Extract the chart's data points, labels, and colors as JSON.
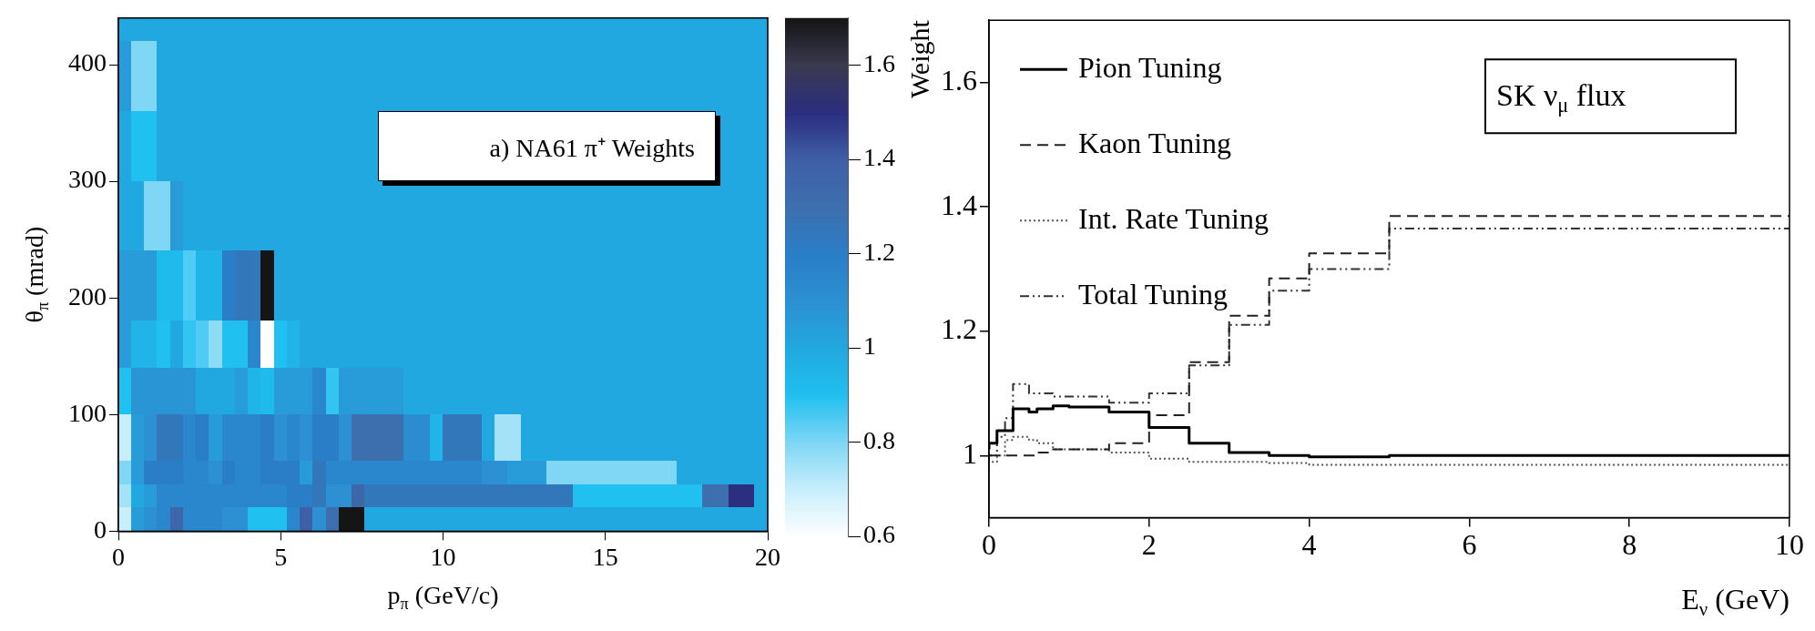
{
  "chart_data": [
    {
      "type": "heatmap",
      "xlabel": "p$_{π}$ (GeV/c)",
      "ylabel": "θ$_{π}$ (mrad)",
      "annotations": [
        "a) NA61 π⁺ Weights"
      ],
      "x": [
        0.2,
        0.6,
        1,
        1.4,
        1.8,
        2.2,
        2.6,
        3,
        3.4,
        3.8,
        4.2,
        4.6,
        5,
        5.4,
        5.8,
        6.2,
        6.6,
        7,
        7.4,
        7.8,
        8.2,
        8.6,
        9,
        9.4,
        9.8,
        10.2,
        10.6,
        11,
        11.4,
        11.8,
        12.2,
        12.6,
        13,
        13.4,
        13.8,
        14.2,
        14.6,
        15,
        15.4,
        15.8,
        16.2,
        16.6,
        17,
        17.4,
        17.8,
        18.2,
        18.6,
        19,
        19.4,
        19.8
      ],
      "y": [
        430,
        410,
        390,
        370,
        350,
        330,
        310,
        290,
        270,
        250,
        230,
        210,
        190,
        170,
        150,
        130,
        110,
        90,
        70,
        50,
        30,
        10
      ],
      "cells": [
        [
          1,
          1,
          1,
          1,
          1,
          1,
          1,
          1,
          1,
          1,
          1,
          1,
          1,
          1,
          1,
          1,
          1,
          1,
          1,
          1,
          1,
          1,
          1,
          1,
          1,
          1,
          1,
          1,
          1,
          1,
          1,
          1,
          1,
          1,
          1,
          1,
          1,
          1,
          1,
          1,
          1,
          1,
          1,
          1,
          1,
          1,
          1,
          1,
          1,
          1
        ],
        [
          1.05,
          0.8,
          0.8,
          1,
          1,
          1,
          1,
          1,
          1,
          1,
          1,
          1,
          1,
          1,
          1,
          1,
          1,
          1,
          1,
          1,
          1,
          1,
          1,
          1,
          1,
          1,
          1,
          1,
          1,
          1,
          1,
          1,
          1,
          1,
          1,
          1,
          1,
          1,
          1,
          1,
          1,
          1,
          1,
          1,
          1,
          1,
          1,
          1,
          1,
          1
        ],
        [
          1.05,
          0.8,
          0.8,
          1,
          1,
          1,
          1,
          1,
          1,
          1,
          1,
          1,
          1,
          1,
          1,
          1,
          1,
          1,
          1,
          1,
          1,
          1,
          1,
          1,
          1,
          1,
          1,
          1,
          1,
          1,
          1,
          1,
          1,
          1,
          1,
          1,
          1,
          1,
          1,
          1,
          1,
          1,
          1,
          1,
          1,
          1,
          1,
          1,
          1,
          1
        ],
        [
          1.05,
          0.8,
          0.8,
          1,
          1,
          1,
          1,
          1,
          1,
          1,
          1,
          1,
          1,
          1,
          1,
          1,
          1,
          1,
          1,
          1,
          1,
          1,
          1,
          1,
          1,
          1,
          1,
          1,
          1,
          1,
          1,
          1,
          1,
          1,
          1,
          1,
          1,
          1,
          1,
          1,
          1,
          1,
          1,
          1,
          1,
          1,
          1,
          1,
          1,
          1
        ],
        [
          1,
          0.9,
          0.9,
          1,
          1,
          1,
          1,
          1,
          1,
          1,
          1,
          1,
          1,
          1,
          1,
          1,
          1,
          1,
          1,
          1,
          null,
          null,
          null,
          null,
          null,
          null,
          null,
          null,
          null,
          null,
          null,
          null,
          null,
          null,
          null,
          null,
          null,
          null,
          null,
          null,
          null,
          null,
          null,
          null,
          null,
          null,
          1,
          1,
          1,
          1
        ],
        [
          1,
          0.9,
          0.9,
          1,
          1,
          1,
          1,
          1,
          1,
          1,
          1,
          1,
          1,
          1,
          1,
          1,
          1,
          1,
          1,
          1,
          null,
          null,
          null,
          null,
          null,
          null,
          null,
          null,
          null,
          null,
          null,
          null,
          null,
          null,
          null,
          null,
          null,
          null,
          null,
          null,
          null,
          null,
          null,
          null,
          null,
          null,
          1,
          1,
          1,
          1
        ],
        [
          1,
          0.9,
          0.9,
          1,
          1,
          1,
          1,
          1,
          1,
          1,
          1,
          1,
          1,
          1,
          1,
          1,
          1,
          1,
          1,
          1,
          null,
          null,
          null,
          null,
          null,
          null,
          null,
          null,
          null,
          null,
          null,
          null,
          null,
          null,
          null,
          null,
          null,
          null,
          null,
          null,
          null,
          null,
          null,
          null,
          null,
          null,
          1,
          1,
          1,
          1
        ],
        [
          1,
          1,
          0.8,
          0.8,
          1.05,
          1,
          1,
          1,
          1,
          1,
          1,
          1,
          1,
          1,
          1,
          1,
          1,
          1,
          1,
          1,
          1,
          1,
          1,
          1,
          1,
          1,
          1,
          1,
          1,
          1,
          1,
          1,
          1,
          1,
          1,
          1,
          1,
          1,
          1,
          1,
          1,
          1,
          1,
          1,
          1,
          1,
          1,
          1,
          1,
          1
        ],
        [
          1,
          1,
          0.8,
          0.8,
          1.05,
          1,
          1,
          1,
          1,
          1,
          1,
          1,
          1,
          1,
          1,
          1,
          1,
          1,
          1,
          1,
          1,
          1,
          1,
          1,
          1,
          1,
          1,
          1,
          1,
          1,
          1,
          1,
          1,
          1,
          1,
          1,
          1,
          1,
          1,
          1,
          1,
          1,
          1,
          1,
          1,
          1,
          1,
          1,
          1,
          1
        ],
        [
          1,
          1,
          0.8,
          0.8,
          1.05,
          1,
          1,
          1,
          1,
          1,
          1,
          1,
          1,
          1,
          1,
          1,
          1,
          1,
          1,
          1,
          1,
          1,
          1,
          1,
          1,
          1,
          1,
          1,
          1,
          1,
          1,
          1,
          1,
          1,
          1,
          1,
          1,
          1,
          1,
          1,
          1,
          1,
          1,
          1,
          1,
          1,
          1,
          1,
          1,
          1
        ],
        [
          1.05,
          1.05,
          1.05,
          0.92,
          0.92,
          0.85,
          0.95,
          0.95,
          1.2,
          1.25,
          1.25,
          1.7,
          1,
          1,
          1,
          1,
          1,
          1,
          1,
          1,
          1,
          1,
          1,
          1,
          1,
          1,
          1,
          1,
          1,
          1,
          1,
          1,
          1,
          1,
          1,
          1,
          1,
          1,
          1,
          1,
          1,
          1,
          1,
          1,
          1,
          1,
          1,
          1,
          1,
          1
        ],
        [
          1.05,
          1.05,
          1.05,
          0.92,
          0.92,
          0.85,
          0.95,
          0.95,
          1.2,
          1.25,
          1.25,
          1.7,
          1,
          1,
          1,
          1,
          1,
          1,
          1,
          1,
          1,
          1,
          1,
          1,
          1,
          1,
          1,
          1,
          1,
          1,
          1,
          1,
          1,
          1,
          1,
          1,
          1,
          1,
          1,
          1,
          1,
          1,
          1,
          1,
          1,
          1,
          1,
          1,
          1,
          1
        ],
        [
          1.05,
          1.05,
          1.05,
          0.92,
          0.92,
          0.85,
          0.95,
          0.95,
          1.2,
          1.25,
          1.25,
          1.7,
          1,
          1,
          1,
          1,
          1,
          1,
          1,
          1,
          1,
          1,
          1,
          1,
          1,
          1,
          1,
          1,
          1,
          1,
          1,
          1,
          1,
          1,
          1,
          1,
          1,
          1,
          1,
          1,
          1,
          1,
          1,
          1,
          1,
          1,
          1,
          1,
          1,
          1
        ],
        [
          1.05,
          0.95,
          0.95,
          0.9,
          1,
          0.88,
          0.85,
          0.78,
          0.9,
          0.9,
          1.15,
          0.6,
          0.9,
          0.95,
          1,
          1,
          1,
          1,
          1,
          1,
          1,
          1,
          1,
          1,
          1,
          1,
          1,
          1,
          1,
          1,
          1,
          1,
          1,
          1,
          1,
          1,
          1,
          1,
          1,
          1,
          1,
          1,
          1,
          1,
          1,
          1,
          1,
          1,
          1,
          1
        ],
        [
          1.05,
          0.95,
          0.95,
          0.9,
          1,
          0.88,
          0.85,
          0.78,
          0.9,
          0.9,
          1.15,
          0.6,
          0.9,
          0.95,
          1,
          1,
          1,
          1,
          1,
          1,
          1,
          1,
          1,
          1,
          1,
          1,
          1,
          1,
          1,
          1,
          1,
          1,
          1,
          1,
          1,
          1,
          1,
          1,
          1,
          1,
          1,
          1,
          1,
          1,
          1,
          1,
          1,
          1,
          1,
          1
        ],
        [
          0.9,
          1.08,
          1.08,
          1.08,
          1.08,
          1.08,
          1,
          1,
          1,
          1.05,
          0.95,
          0.92,
          1.05,
          1.05,
          1.05,
          1.15,
          0.88,
          1.05,
          1.05,
          1.05,
          1.05,
          1.05,
          1,
          1,
          1,
          1,
          1,
          1,
          1,
          1,
          1,
          1,
          1,
          1,
          1,
          1,
          1,
          1,
          1,
          1,
          1,
          1,
          1,
          1,
          1,
          1,
          1,
          1,
          1,
          1
        ],
        [
          0.9,
          1.08,
          1.08,
          1.08,
          1.08,
          1.08,
          1,
          1,
          1,
          1.05,
          0.95,
          0.92,
          1.05,
          1.05,
          1.05,
          1.15,
          0.88,
          1.05,
          1.05,
          1.05,
          1.05,
          1.05,
          1,
          1,
          1,
          1,
          1,
          1,
          1,
          1,
          1,
          1,
          1,
          1,
          1,
          1,
          1,
          1,
          1,
          1,
          1,
          1,
          1,
          1,
          1,
          1,
          1,
          1,
          1,
          1
        ],
        [
          0.7,
          1.05,
          1.1,
          1.25,
          1.25,
          1.15,
          1.2,
          1.05,
          1.15,
          1.15,
          1.15,
          1.2,
          1.1,
          1.15,
          1.1,
          1.2,
          1.2,
          1.1,
          1.3,
          1.3,
          1.3,
          1.3,
          1.12,
          1.12,
          0.95,
          1.25,
          1.25,
          1.25,
          1,
          0.75,
          0.75,
          1,
          1,
          1,
          1,
          1,
          1,
          1,
          1,
          1,
          1,
          1,
          1,
          1,
          1,
          1,
          1,
          1,
          1,
          1
        ],
        [
          0.7,
          1.05,
          1.1,
          1.25,
          1.25,
          1.15,
          1.2,
          1.05,
          1.15,
          1.15,
          1.15,
          1.2,
          1.1,
          1.15,
          1.1,
          1.2,
          1.2,
          1.1,
          1.3,
          1.3,
          1.3,
          1.3,
          1.12,
          1.12,
          0.95,
          1.25,
          1.25,
          1.25,
          1,
          0.75,
          0.75,
          1,
          1,
          1,
          1,
          1,
          1,
          1,
          1,
          1,
          1,
          1,
          1,
          1,
          1,
          1,
          1,
          1,
          1,
          1
        ],
        [
          0.8,
          1.05,
          1.2,
          1.2,
          1.2,
          1.15,
          1.15,
          1.1,
          1.2,
          1.15,
          1.15,
          1.2,
          1.2,
          1.2,
          1.05,
          1.25,
          1.15,
          1.15,
          1.15,
          1.15,
          1.15,
          1.15,
          1.15,
          1.15,
          1.15,
          1.15,
          1.15,
          1.15,
          1.1,
          1.1,
          1.05,
          1.05,
          1.05,
          0.8,
          0.8,
          0.8,
          0.8,
          0.8,
          0.8,
          0.8,
          0.8,
          0.8,
          0.8,
          1,
          1,
          1,
          1,
          1,
          1,
          1
        ],
        [
          0.75,
          1,
          1.05,
          1.15,
          1.15,
          1.15,
          1.15,
          1.15,
          1.15,
          1.15,
          1.15,
          1.15,
          1.15,
          1.2,
          1.2,
          1.25,
          1.1,
          1.1,
          1.35,
          1.25,
          1.25,
          1.25,
          1.25,
          1.25,
          1.25,
          1.25,
          1.25,
          1.25,
          1.25,
          1.25,
          1.25,
          1.25,
          1.25,
          1.25,
          1.25,
          0.9,
          0.9,
          0.9,
          0.9,
          0.9,
          0.9,
          0.9,
          0.9,
          0.9,
          0.9,
          1.3,
          1.3,
          1.5,
          1.5,
          1
        ],
        [
          0.7,
          1.05,
          1.1,
          1.15,
          1.35,
          1.15,
          1.15,
          1.15,
          1.1,
          1.1,
          0.9,
          0.9,
          0.9,
          1.15,
          1.4,
          1.1,
          1.3,
          1.7,
          1.7,
          1,
          1,
          1,
          1,
          1,
          1,
          1,
          1,
          1,
          1,
          1,
          1,
          1,
          1,
          1,
          1,
          1,
          1,
          1,
          1,
          1,
          1,
          1,
          1,
          1,
          1,
          1,
          1,
          1,
          1,
          1
        ]
      ],
      "xlim": [
        0,
        20
      ],
      "xticks": [
        0,
        5,
        10,
        15,
        20
      ],
      "ylim": [
        0,
        440
      ],
      "yticks": [
        0,
        100,
        200,
        300,
        400
      ],
      "clim": [
        0.6,
        1.7
      ],
      "cticks": [
        0.6,
        0.8,
        1,
        1.2,
        1.4,
        1.6
      ],
      "colors": [
        "#ffffff",
        "#c8eefb",
        "#7fd6f5",
        "#20c0f0",
        "#22a8e0",
        "#2c90d2",
        "#2a7ec8",
        "#3d6fae",
        "#3f5fa6",
        "#2c2e80",
        "#3a3a50",
        "#151515"
      ]
    },
    {
      "type": "step",
      "xlabel": "E$_{ν}$ (GeV)",
      "ylabel": "Weight",
      "annotations": [
        "SK ν$_{μ}$ flux"
      ],
      "legend": "top left",
      "x": [
        0,
        0.1,
        0.2,
        0.3,
        0.5,
        0.6,
        0.8,
        1,
        1.5,
        2,
        2.5,
        3,
        3.5,
        4,
        5,
        7,
        10
      ],
      "series": [
        {
          "name": "Pion Tuning",
          "color": "#000000",
          "line_style": "solid",
          "values": [
            1.01,
            1.02,
            1.04,
            1.04,
            1.075,
            1.07,
            1.075,
            1.08,
            1.078,
            1.07,
            1.045,
            1.02,
            1.005,
            1.0,
            0.998,
            1.0,
            1.0
          ]
        },
        {
          "name": "Kaon Tuning",
          "color": "#222222",
          "line_style": "dashed",
          "values": [
            1.0,
            1.0,
            1.0,
            1.0,
            1.0,
            1.0,
            1.005,
            1.01,
            1.01,
            1.02,
            1.065,
            1.15,
            1.225,
            1.285,
            1.325,
            1.385,
            1.385
          ]
        },
        {
          "name": "Int. Rate Tuning",
          "color": "#555555",
          "line_style": "dotted",
          "values": [
            0.98,
            0.99,
            1.0,
            1.025,
            1.03,
            1.025,
            1.02,
            1.01,
            1.01,
            1.005,
            0.995,
            0.99,
            0.99,
            0.988,
            0.985,
            0.985,
            0.985
          ]
        },
        {
          "name": "Total Tuning",
          "color": "#333333",
          "line_style": "dashdot",
          "values": [
            0.99,
            1.0,
            1.03,
            1.06,
            1.115,
            1.1,
            1.1,
            1.095,
            1.095,
            1.085,
            1.1,
            1.145,
            1.21,
            1.265,
            1.3,
            1.365,
            1.365
          ]
        }
      ],
      "xlim": [
        0,
        10
      ],
      "xticks": [
        0,
        2,
        4,
        6,
        8,
        10
      ],
      "ylim": [
        0.9,
        1.7
      ],
      "yticks": [
        1,
        1.2,
        1.4,
        1.6
      ]
    }
  ]
}
